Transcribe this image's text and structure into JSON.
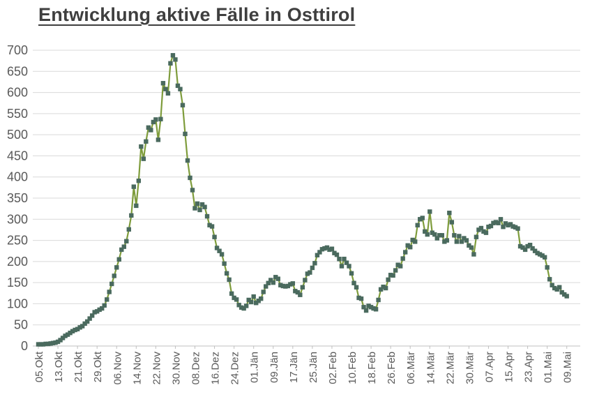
{
  "page": {
    "title": "Entwicklung aktive Fälle in Osttirol"
  },
  "colors": {
    "title_text": "#3f3f3f",
    "axis_text": "#595959",
    "gridline": "#d9d9d9",
    "axis_line": "#bfbfbf",
    "series_line": "#7e9c3b",
    "series_marker": "#4a6a5e",
    "background": "#ffffff"
  },
  "chart_data": {
    "type": "line",
    "title": "Entwicklung aktive Fälle in Osttirol",
    "series_name": "aktive Fälle",
    "xlabel": "",
    "ylabel": "",
    "ylim": [
      0,
      700
    ],
    "y_tick_step": 50,
    "y_tick_labels": [
      "0",
      "50",
      "100",
      "150",
      "200",
      "250",
      "300",
      "350",
      "400",
      "450",
      "500",
      "550",
      "600",
      "650",
      "700"
    ],
    "grid": "horizontal",
    "legend_position": "none",
    "x_interval": "daily",
    "x_start": "05.Okt",
    "x_end": "09.Mai",
    "x_tick_every_n_days": 8,
    "x_tick_labels": [
      "05.Okt",
      "13.Okt",
      "21.Okt",
      "29.Okt",
      "06.Nov",
      "14.Nov",
      "22.Nov",
      "30.Nov",
      "08.Dez",
      "16.Dez",
      "24.Dez",
      "01.Jän",
      "09.Jän",
      "17.Jän",
      "25.Jän",
      "02.Feb",
      "10.Feb",
      "18.Feb",
      "26.Feb",
      "06.Mär",
      "14.Mär",
      "22.Mär",
      "30.Mär",
      "07.Apr",
      "15.Apr",
      "23.Apr",
      "01.Mai",
      "09.Mai"
    ],
    "values": [
      4,
      4,
      4,
      5,
      5,
      6,
      7,
      8,
      10,
      14,
      19,
      24,
      27,
      31,
      35,
      38,
      40,
      44,
      47,
      53,
      58,
      65,
      72,
      80,
      82,
      86,
      89,
      96,
      110,
      128,
      147,
      166,
      186,
      205,
      228,
      235,
      248,
      276,
      309,
      377,
      332,
      391,
      472,
      443,
      484,
      517,
      511,
      530,
      536,
      488,
      537,
      622,
      608,
      598,
      669,
      688,
      678,
      616,
      608,
      570,
      502,
      439,
      398,
      369,
      326,
      337,
      322,
      335,
      329,
      307,
      286,
      283,
      258,
      232,
      225,
      217,
      195,
      172,
      157,
      124,
      114,
      110,
      97,
      91,
      89,
      95,
      109,
      104,
      117,
      102,
      107,
      112,
      128,
      141,
      149,
      156,
      150,
      163,
      159,
      144,
      142,
      141,
      142,
      146,
      148,
      130,
      127,
      121,
      139,
      156,
      171,
      174,
      185,
      196,
      215,
      222,
      229,
      231,
      233,
      228,
      230,
      220,
      216,
      206,
      189,
      206,
      197,
      189,
      172,
      149,
      139,
      114,
      112,
      92,
      84,
      95,
      92,
      89,
      87,
      109,
      134,
      140,
      137,
      157,
      168,
      167,
      179,
      192,
      189,
      207,
      222,
      238,
      234,
      251,
      247,
      286,
      300,
      303,
      271,
      264,
      318,
      268,
      264,
      255,
      262,
      262,
      247,
      250,
      315,
      293,
      262,
      247,
      260,
      247,
      255,
      250,
      238,
      233,
      217,
      258,
      275,
      279,
      271,
      268,
      282,
      284,
      291,
      293,
      291,
      300,
      282,
      290,
      286,
      288,
      283,
      281,
      278,
      236,
      233,
      228,
      236,
      239,
      231,
      225,
      220,
      217,
      214,
      210,
      186,
      158,
      144,
      137,
      134,
      139,
      127,
      122,
      118
    ]
  }
}
